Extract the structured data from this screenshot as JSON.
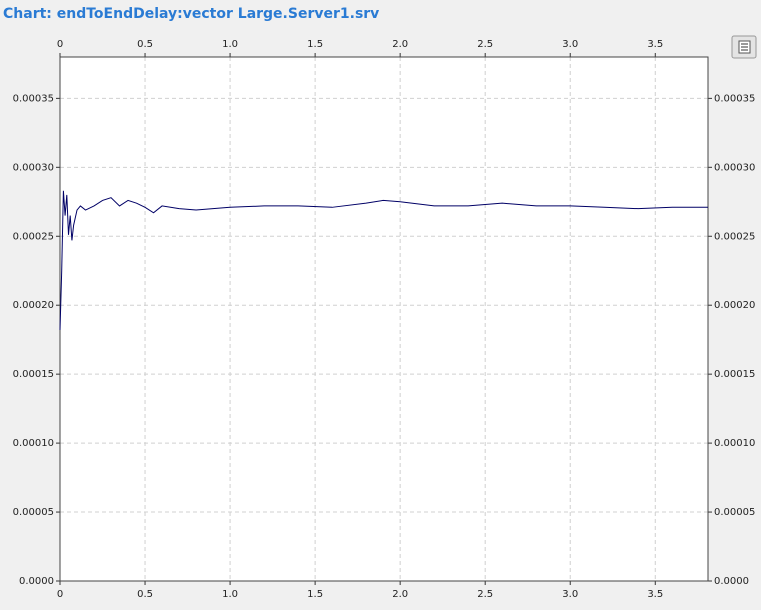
{
  "chart_data": {
    "type": "line",
    "title": "Chart: endToEndDelay:vector Large.Server1.srv",
    "x": [
      0,
      0.01,
      0.02,
      0.03,
      0.04,
      0.05,
      0.06,
      0.07,
      0.08,
      0.1,
      0.12,
      0.15,
      0.2,
      0.25,
      0.3,
      0.35,
      0.4,
      0.45,
      0.5,
      0.55,
      0.6,
      0.7,
      0.8,
      0.9,
      1.0,
      1.2,
      1.4,
      1.6,
      1.8,
      1.9,
      2.0,
      2.2,
      2.4,
      2.6,
      2.8,
      3.0,
      3.2,
      3.4,
      3.6,
      3.81
    ],
    "series": [
      {
        "color": "#000066",
        "values": [
          0.000182,
          0.000225,
          0.000283,
          0.000265,
          0.00028,
          0.000251,
          0.000265,
          0.000247,
          0.000258,
          0.000269,
          0.000272,
          0.000269,
          0.000272,
          0.000276,
          0.000278,
          0.000272,
          0.000276,
          0.000274,
          0.000271,
          0.000267,
          0.000272,
          0.00027,
          0.000269,
          0.00027,
          0.000271,
          0.000272,
          0.000272,
          0.000271,
          0.000274,
          0.000276,
          0.000275,
          0.000272,
          0.000272,
          0.000274,
          0.000272,
          0.000272,
          0.000271,
          0.00027,
          0.000271,
          0.000271
        ]
      }
    ],
    "xlim": [
      0,
      3.81
    ],
    "xticks": [
      0,
      0.5,
      {
        "value": 1,
        "label": "1.0"
      },
      1.5,
      {
        "value": 2,
        "label": "2.0"
      },
      2.5,
      {
        "value": 3,
        "label": "3.0"
      },
      3.5
    ],
    "ylim": [
      0,
      0.00038
    ],
    "yticks": [
      {
        "value": 0,
        "label": "0.0000"
      },
      5e-05,
      {
        "value": 0.0001,
        "label": "0.00010"
      },
      0.00015,
      {
        "value": 0.0002,
        "label": "0.00020"
      },
      0.00025,
      {
        "value": 0.0003,
        "label": "0.00030"
      },
      0.00035
    ],
    "grid": true
  }
}
